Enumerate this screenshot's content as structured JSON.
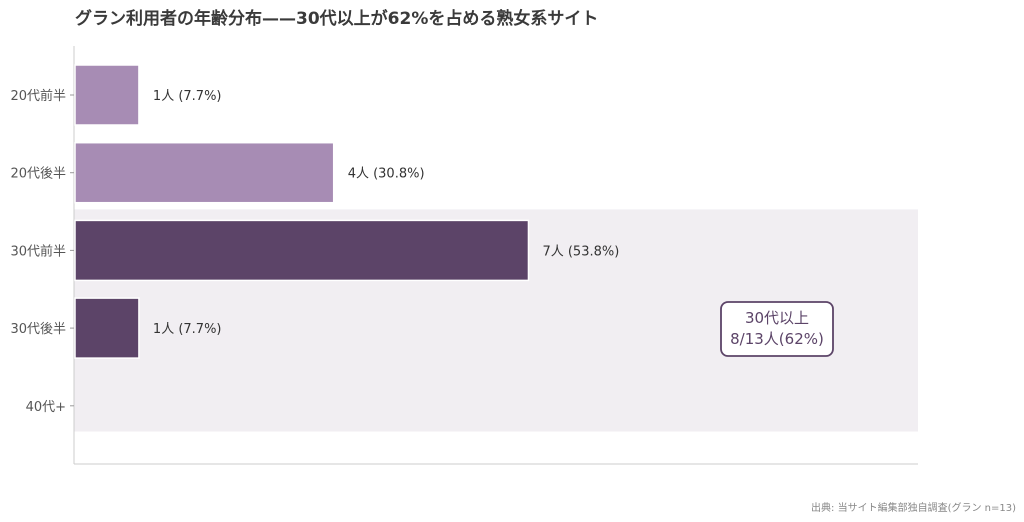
{
  "title": "グラン利用者の年齢分布——30代以上が62%を占める熟女系サイト",
  "source": "出典: 当サイト編集部独自調査(グラン n=13)",
  "chart_data": {
    "type": "bar",
    "orientation": "horizontal",
    "categories": [
      "20代前半",
      "20代後半",
      "30代前半",
      "30代後半",
      "40代+"
    ],
    "values": [
      1,
      4,
      7,
      1,
      0
    ],
    "data_labels": [
      "1人 (7.7%)",
      "4人 (30.8%)",
      "7人 (53.8%)",
      "1人 (7.7%)",
      ""
    ],
    "xlim": [
      0,
      13
    ],
    "highlight_categories": [
      "30代前半",
      "30代後半",
      "40代+"
    ],
    "annotation": {
      "lines": [
        "30代以上",
        "8/13人(62%)"
      ]
    },
    "colors": {
      "base": "#a78cb4",
      "highlight": "#5c4468",
      "highlight_band": "#f1eef2",
      "axis": "#cccccc"
    },
    "grid": false,
    "legend": "none"
  }
}
